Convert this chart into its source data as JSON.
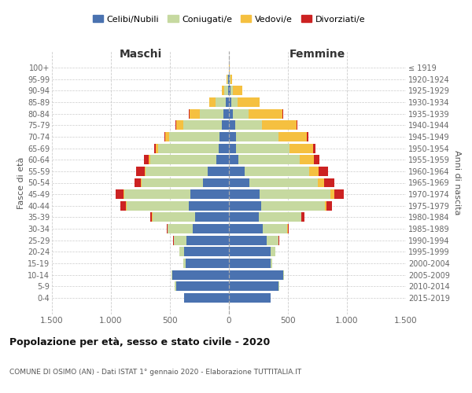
{
  "age_groups": [
    "0-4",
    "5-9",
    "10-14",
    "15-19",
    "20-24",
    "25-29",
    "30-34",
    "35-39",
    "40-44",
    "45-49",
    "50-54",
    "55-59",
    "60-64",
    "65-69",
    "70-74",
    "75-79",
    "80-84",
    "85-89",
    "90-94",
    "95-99",
    "100+"
  ],
  "birth_years": [
    "2015-2019",
    "2010-2014",
    "2005-2009",
    "2000-2004",
    "1995-1999",
    "1990-1994",
    "1985-1989",
    "1980-1984",
    "1975-1979",
    "1970-1974",
    "1965-1969",
    "1960-1964",
    "1955-1959",
    "1950-1954",
    "1945-1949",
    "1940-1944",
    "1935-1939",
    "1930-1934",
    "1925-1929",
    "1920-1924",
    "≤ 1919"
  ],
  "maschi": {
    "celibi": [
      380,
      450,
      480,
      370,
      380,
      360,
      310,
      290,
      340,
      330,
      220,
      180,
      110,
      90,
      80,
      60,
      45,
      25,
      10,
      5,
      2
    ],
    "coniugati": [
      2,
      10,
      5,
      15,
      40,
      110,
      210,
      360,
      530,
      560,
      520,
      530,
      560,
      510,
      430,
      330,
      200,
      90,
      30,
      8,
      1
    ],
    "vedovi": [
      0,
      0,
      0,
      0,
      0,
      0,
      1,
      1,
      2,
      3,
      5,
      5,
      10,
      20,
      30,
      60,
      90,
      50,
      20,
      5,
      0
    ],
    "divorziati": [
      0,
      0,
      0,
      0,
      1,
      3,
      8,
      15,
      50,
      65,
      55,
      70,
      40,
      15,
      8,
      5,
      2,
      0,
      0,
      0,
      0
    ]
  },
  "femmine": {
    "nubili": [
      350,
      420,
      460,
      350,
      350,
      320,
      285,
      250,
      270,
      260,
      175,
      130,
      80,
      60,
      60,
      50,
      35,
      20,
      10,
      5,
      2
    ],
    "coniugate": [
      2,
      5,
      5,
      15,
      40,
      100,
      210,
      360,
      540,
      600,
      580,
      550,
      520,
      450,
      360,
      230,
      130,
      50,
      20,
      5,
      1
    ],
    "vedove": [
      0,
      0,
      0,
      0,
      1,
      2,
      3,
      5,
      15,
      30,
      50,
      80,
      120,
      200,
      240,
      290,
      290,
      190,
      80,
      15,
      1
    ],
    "divorziate": [
      0,
      0,
      0,
      0,
      1,
      3,
      10,
      25,
      50,
      80,
      90,
      80,
      45,
      25,
      15,
      10,
      5,
      3,
      2,
      0,
      0
    ]
  },
  "colors": {
    "celibi": "#4a72b0",
    "coniugati": "#c6d9a0",
    "vedovi": "#f5c040",
    "divorziati": "#cc2222"
  },
  "xlim": 1500,
  "title": "Popolazione per età, sesso e stato civile - 2020",
  "subtitle": "COMUNE DI OSIMO (AN) - Dati ISTAT 1° gennaio 2020 - Elaborazione TUTTITALIA.IT",
  "xlabel_left": "Maschi",
  "xlabel_right": "Femmine",
  "ylabel": "Fasce di età",
  "ylabel_right": "Anni di nascita",
  "legend_labels": [
    "Celibi/Nubili",
    "Coniugati/e",
    "Vedovi/e",
    "Divorziati/e"
  ],
  "background_color": "#ffffff",
  "grid_color": "#cccccc",
  "tick_positions": [
    -1500,
    -1000,
    -500,
    0,
    500,
    1000,
    1500
  ],
  "tick_labels": [
    "1.500",
    "1.000",
    "500",
    "0",
    "500",
    "1.000",
    "1.500"
  ]
}
